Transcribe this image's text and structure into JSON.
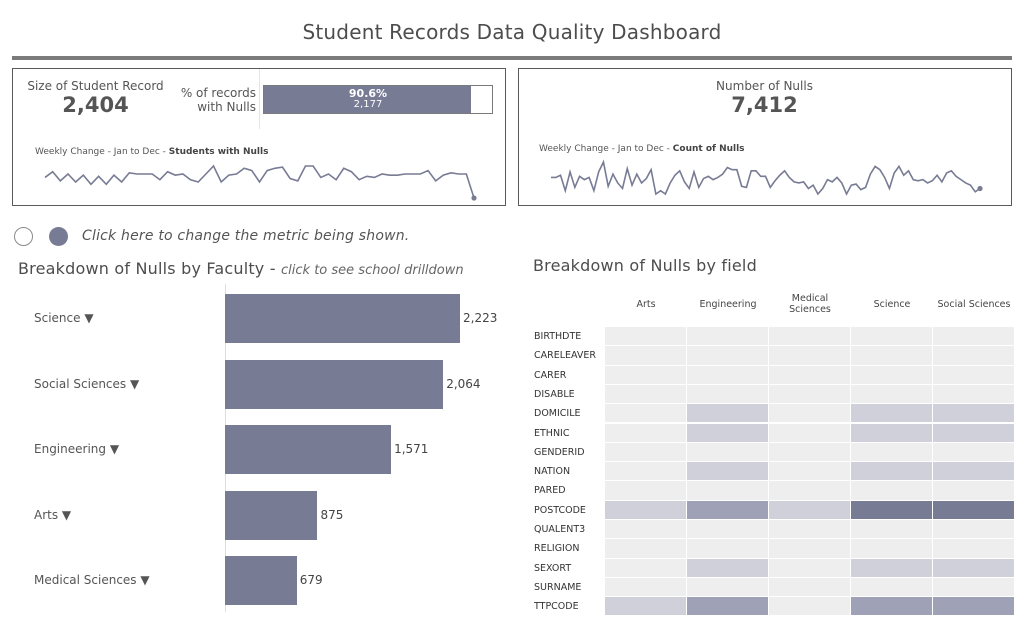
{
  "page_title": "Student Records Data Quality Dashboard",
  "kpi_left": {
    "size_label": "Size of Student Record",
    "size_value": "2,404",
    "pct_label_line1": "% of records",
    "pct_label_line2": "with Nulls",
    "pct_fraction": 0.906,
    "pct_value": "90.6%",
    "pct_count": "2,177",
    "weekly_prefix": "Weekly Change  - Jan to Dec - ",
    "weekly_metric": "Students with Nulls",
    "spark": [
      50,
      55,
      47,
      53,
      46,
      52,
      44,
      51,
      44,
      52,
      46,
      54,
      53,
      53,
      53,
      48,
      55,
      52,
      53,
      48,
      46,
      53,
      60,
      46,
      52,
      53,
      58,
      56,
      46,
      56,
      58,
      59,
      49,
      47,
      60,
      60,
      50,
      53,
      48,
      58,
      55,
      48,
      51,
      50,
      53,
      52,
      52,
      53,
      53,
      53,
      56,
      47,
      52,
      54,
      53,
      53,
      32
    ]
  },
  "kpi_right": {
    "label": "Number of Nulls",
    "value": "7,412",
    "weekly_prefix": "Weekly Change - Jan to Dec - ",
    "weekly_metric": "Count of Nulls",
    "spark": [
      50,
      50,
      52,
      38,
      55,
      41,
      51,
      48,
      50,
      38,
      55,
      64,
      42,
      53,
      45,
      40,
      58,
      43,
      53,
      45,
      49,
      57,
      35,
      38,
      35,
      45,
      52,
      56,
      46,
      40,
      55,
      41,
      49,
      51,
      48,
      50,
      53,
      59,
      57,
      57,
      42,
      41,
      56,
      56,
      51,
      51,
      41,
      47,
      52,
      56,
      50,
      46,
      45,
      46,
      40,
      43,
      35,
      40,
      48,
      46,
      50,
      45,
      35,
      43,
      44,
      39,
      41,
      53,
      60,
      57,
      50,
      40,
      54,
      60,
      52,
      56,
      48,
      47,
      48,
      45,
      47,
      52,
      46,
      54,
      56,
      51,
      48,
      45,
      43,
      37,
      40
    ]
  },
  "metric_toggle": {
    "label": "Click here to change the metric being shown.",
    "options": [
      "off",
      "on"
    ],
    "selected": "on"
  },
  "faculty_section": {
    "title": "Breakdown of Nulls by Faculty - ",
    "subtitle": "click to see school drilldown",
    "caret": "▼"
  },
  "field_section": {
    "title": "Breakdown of Nulls by field"
  },
  "chart_data": [
    {
      "type": "bar",
      "orientation": "horizontal",
      "categories": [
        "Science",
        "Social Sciences",
        "Engineering",
        "Arts",
        "Medical Sciences"
      ],
      "values": [
        2223,
        2064,
        1571,
        875,
        679
      ],
      "value_labels": [
        "2,223",
        "2,064",
        "1,571",
        "875",
        "679"
      ],
      "title": "Breakdown of Nulls by Faculty",
      "xlabel": "",
      "ylabel": "",
      "grid": false
    },
    {
      "type": "heatmap",
      "title": "Breakdown of Nulls by field",
      "columns": [
        "Arts",
        "Engineering",
        "Medical Sciences",
        "Science",
        "Social Sciences"
      ],
      "column_labels": [
        [
          "Arts"
        ],
        [
          "Engineering"
        ],
        [
          "Medical",
          "Sciences"
        ],
        [
          "Science"
        ],
        [
          "Social Sciences"
        ]
      ],
      "rows": [
        "BIRTHDTE",
        "CARELEAVER",
        "CARER",
        "DISABLE",
        "DOMICILE",
        "ETHNIC",
        "GENDERID",
        "NATION",
        "PARED",
        "POSTCODE",
        "QUALENT3",
        "RELIGION",
        "SEXORT",
        "SURNAME",
        "TTPCODE"
      ],
      "intensity_levels": [
        "none",
        "low",
        "medium",
        "high"
      ],
      "values": [
        [
          0,
          0,
          0,
          0,
          0
        ],
        [
          0,
          0,
          0,
          0,
          0
        ],
        [
          0,
          0,
          0,
          0,
          0
        ],
        [
          0,
          0,
          0,
          0,
          0
        ],
        [
          0,
          1,
          0,
          1,
          1
        ],
        [
          0,
          1,
          0,
          1,
          1
        ],
        [
          0,
          0,
          0,
          0,
          0
        ],
        [
          0,
          1,
          0,
          1,
          1
        ],
        [
          0,
          0,
          0,
          0,
          0
        ],
        [
          1,
          2,
          1,
          3,
          3
        ],
        [
          0,
          0,
          0,
          0,
          0
        ],
        [
          0,
          0,
          0,
          0,
          0
        ],
        [
          0,
          1,
          0,
          1,
          1
        ],
        [
          0,
          0,
          0,
          0,
          0
        ],
        [
          1,
          2,
          0,
          2,
          2
        ]
      ],
      "colors": [
        "#eeeeee",
        "#cfd0da",
        "#9fa1b6",
        "#777b94"
      ]
    }
  ],
  "colors": {
    "accent": "#777b94",
    "panel_border": "#5a5a5a",
    "text": "#555555"
  }
}
